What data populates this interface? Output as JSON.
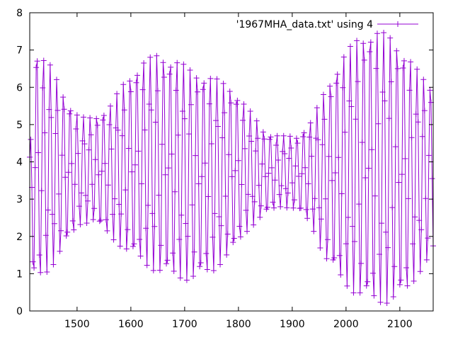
{
  "chart_data": {
    "type": "line",
    "style": "linespoints",
    "marker": "plus",
    "title": "",
    "xlabel": "",
    "ylabel": "",
    "xlim": [
      1412,
      2162
    ],
    "ylim": [
      0,
      8
    ],
    "xticks": [
      1500,
      1600,
      1700,
      1800,
      1900,
      2000,
      2100
    ],
    "xtick_labels": [
      "1500",
      "1600",
      "1700",
      "1800",
      "1900",
      "2000",
      "2100"
    ],
    "yticks": [
      0,
      1,
      2,
      3,
      4,
      5,
      6,
      7,
      8
    ],
    "ytick_labels": [
      "0",
      "1",
      "2",
      "3",
      "4",
      "5",
      "6",
      "7",
      "8"
    ],
    "grid": false,
    "legend": "top-right",
    "series": [
      {
        "name": "'1967MHA_data.txt' using 4",
        "color": "#9400d3",
        "sampling_step": 2,
        "cycle_length": 12.4,
        "first_x": 1412,
        "peak_envelope": [
          {
            "x": 1412,
            "y": 4.2
          },
          {
            "x": 1420,
            "y": 7.1
          },
          {
            "x": 1450,
            "y": 6.6
          },
          {
            "x": 1480,
            "y": 5.7
          },
          {
            "x": 1505,
            "y": 5.2
          },
          {
            "x": 1530,
            "y": 5.2
          },
          {
            "x": 1560,
            "y": 5.5
          },
          {
            "x": 1590,
            "y": 6.2
          },
          {
            "x": 1620,
            "y": 6.7
          },
          {
            "x": 1650,
            "y": 6.9
          },
          {
            "x": 1680,
            "y": 6.8
          },
          {
            "x": 1710,
            "y": 6.5
          },
          {
            "x": 1750,
            "y": 6.3
          },
          {
            "x": 1790,
            "y": 6.0
          },
          {
            "x": 1820,
            "y": 5.4
          },
          {
            "x": 1850,
            "y": 4.8
          },
          {
            "x": 1880,
            "y": 4.7
          },
          {
            "x": 1910,
            "y": 4.7
          },
          {
            "x": 1935,
            "y": 5.1
          },
          {
            "x": 1960,
            "y": 5.9
          },
          {
            "x": 1990,
            "y": 6.8
          },
          {
            "x": 2020,
            "y": 7.3
          },
          {
            "x": 2050,
            "y": 7.6
          },
          {
            "x": 2080,
            "y": 7.4
          },
          {
            "x": 2110,
            "y": 7.0
          },
          {
            "x": 2140,
            "y": 6.3
          },
          {
            "x": 2162,
            "y": 6.0
          }
        ],
        "trough_envelope": [
          {
            "x": 1412,
            "y": 2.0
          },
          {
            "x": 1420,
            "y": 0.7
          },
          {
            "x": 1450,
            "y": 1.1
          },
          {
            "x": 1480,
            "y": 1.8
          },
          {
            "x": 1505,
            "y": 2.3
          },
          {
            "x": 1530,
            "y": 2.4
          },
          {
            "x": 1560,
            "y": 2.0
          },
          {
            "x": 1590,
            "y": 1.6
          },
          {
            "x": 1620,
            "y": 1.3
          },
          {
            "x": 1650,
            "y": 1.0
          },
          {
            "x": 1680,
            "y": 0.9
          },
          {
            "x": 1710,
            "y": 0.8
          },
          {
            "x": 1750,
            "y": 1.0
          },
          {
            "x": 1790,
            "y": 1.6
          },
          {
            "x": 1820,
            "y": 2.2
          },
          {
            "x": 1850,
            "y": 2.6
          },
          {
            "x": 1880,
            "y": 2.8
          },
          {
            "x": 1910,
            "y": 2.7
          },
          {
            "x": 1935,
            "y": 2.3
          },
          {
            "x": 1960,
            "y": 1.4
          },
          {
            "x": 1990,
            "y": 0.8
          },
          {
            "x": 2020,
            "y": 0.4
          },
          {
            "x": 2050,
            "y": 0.2
          },
          {
            "x": 2080,
            "y": 0.2
          },
          {
            "x": 2110,
            "y": 0.4
          },
          {
            "x": 2140,
            "y": 1.1
          },
          {
            "x": 2162,
            "y": 1.5
          }
        ]
      }
    ]
  }
}
